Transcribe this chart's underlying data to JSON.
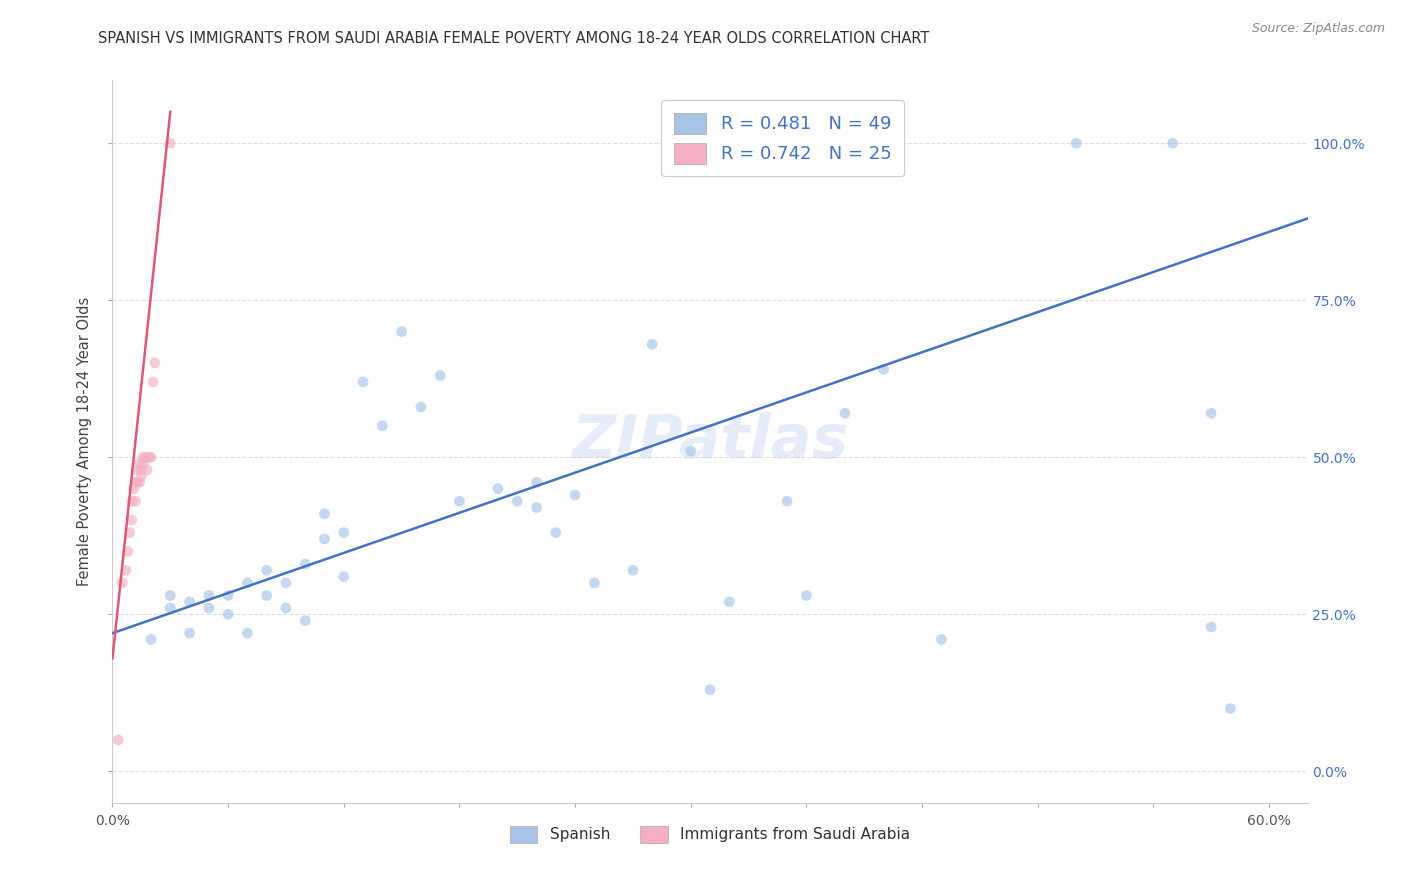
{
  "title": "SPANISH VS IMMIGRANTS FROM SAUDI ARABIA FEMALE POVERTY AMONG 18-24 YEAR OLDS CORRELATION CHART",
  "source": "Source: ZipAtlas.com",
  "xlabel_ticks": [
    "0.0%",
    "",
    "",
    "",
    "",
    "",
    "",
    "",
    "",
    "60.0%"
  ],
  "xlabel_vals": [
    0.0,
    0.06,
    0.12,
    0.18,
    0.24,
    0.3,
    0.36,
    0.42,
    0.48,
    0.6
  ],
  "ylabel": "Female Poverty Among 18-24 Year Olds",
  "ylabel_ticks": [
    "100.0%",
    "75.0%",
    "50.0%",
    "25.0%",
    "0.0%"
  ],
  "ylabel_vals": [
    1.0,
    0.75,
    0.5,
    0.25,
    0.0
  ],
  "xlim": [
    0.0,
    0.62
  ],
  "ylim": [
    -0.05,
    1.1
  ],
  "blue_color": "#a8c4e8",
  "pink_color": "#f4afc0",
  "blue_line_color": "#4472C4",
  "pink_line_color": "#e05878",
  "legend_R_blue": "R = 0.481",
  "legend_N_blue": "N = 49",
  "legend_R_pink": "R = 0.742",
  "legend_N_pink": "N = 25",
  "legend_label_blue": "Spanish",
  "legend_label_pink": "Immigrants from Saudi Arabia",
  "blue_scatter_x": [
    0.02,
    0.03,
    0.03,
    0.04,
    0.04,
    0.05,
    0.05,
    0.06,
    0.06,
    0.07,
    0.07,
    0.08,
    0.08,
    0.09,
    0.09,
    0.1,
    0.1,
    0.11,
    0.11,
    0.12,
    0.12,
    0.13,
    0.14,
    0.15,
    0.16,
    0.17,
    0.18,
    0.2,
    0.21,
    0.22,
    0.22,
    0.23,
    0.24,
    0.25,
    0.27,
    0.28,
    0.3,
    0.31,
    0.32,
    0.35,
    0.36,
    0.38,
    0.4,
    0.43,
    0.5,
    0.55,
    0.57,
    0.57,
    0.58
  ],
  "blue_scatter_y": [
    0.21,
    0.26,
    0.28,
    0.22,
    0.27,
    0.26,
    0.28,
    0.25,
    0.28,
    0.22,
    0.3,
    0.28,
    0.32,
    0.26,
    0.3,
    0.24,
    0.33,
    0.37,
    0.41,
    0.31,
    0.38,
    0.62,
    0.55,
    0.7,
    0.58,
    0.63,
    0.43,
    0.45,
    0.43,
    0.42,
    0.46,
    0.38,
    0.44,
    0.3,
    0.32,
    0.68,
    0.51,
    0.13,
    0.27,
    0.43,
    0.28,
    0.57,
    0.64,
    0.21,
    1.0,
    1.0,
    0.57,
    0.23,
    0.1
  ],
  "pink_scatter_x": [
    0.003,
    0.005,
    0.007,
    0.008,
    0.009,
    0.01,
    0.01,
    0.011,
    0.012,
    0.012,
    0.013,
    0.013,
    0.014,
    0.014,
    0.015,
    0.015,
    0.016,
    0.016,
    0.017,
    0.018,
    0.019,
    0.02,
    0.021,
    0.022,
    0.03
  ],
  "pink_scatter_y": [
    0.05,
    0.3,
    0.32,
    0.35,
    0.38,
    0.4,
    0.43,
    0.45,
    0.43,
    0.46,
    0.46,
    0.48,
    0.46,
    0.49,
    0.47,
    0.48,
    0.5,
    0.49,
    0.5,
    0.48,
    0.5,
    0.5,
    0.62,
    0.65,
    1.0
  ],
  "blue_line_x": [
    0.0,
    0.62
  ],
  "blue_line_y": [
    0.22,
    0.88
  ],
  "pink_line_x": [
    0.0,
    0.03
  ],
  "pink_line_y": [
    0.18,
    1.05
  ],
  "watermark": "ZIPatlas",
  "marker_size": 60,
  "alpha_scatter": 0.65
}
